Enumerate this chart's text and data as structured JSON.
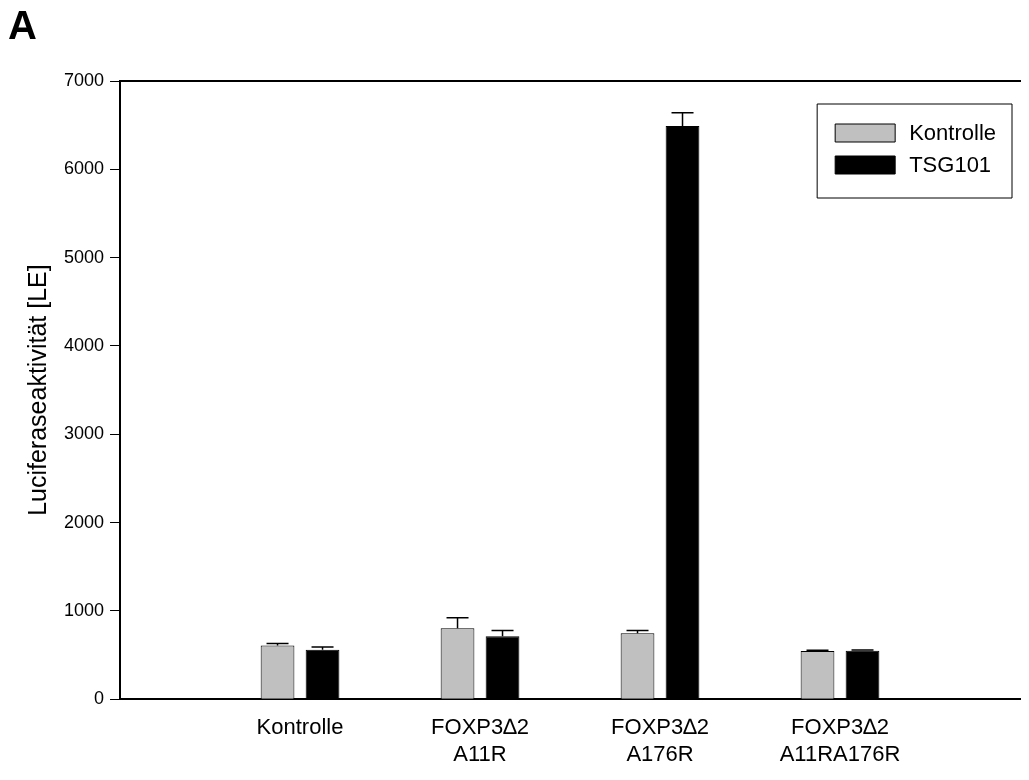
{
  "chart_data": {
    "type": "bar",
    "ylabel": "Luciferaseaktivität [LE]",
    "annotations": [
      "A"
    ],
    "categories": [
      null,
      "Kontrolle",
      "FOXP3∆2\nA11R",
      "FOXP3∆2\nA176R",
      "FOXP3∆2\nA11RA176R",
      null
    ],
    "series": [
      {
        "name": "Kontrolle",
        "color": "#c0c0c0",
        "values": [
          null,
          607,
          803,
          748,
          545,
          null
        ],
        "errors": [
          null,
          25,
          120,
          30,
          10,
          null
        ]
      },
      {
        "name": "TSG101",
        "color": "#000000",
        "values": [
          null,
          560,
          713,
          6490,
          550,
          null
        ],
        "errors": [
          null,
          30,
          65,
          150,
          8,
          null
        ]
      }
    ],
    "ylim": [
      0,
      7000
    ],
    "yticks": [
      0,
      1000,
      2000,
      3000,
      4000,
      5000,
      6000,
      7000
    ],
    "grid": false,
    "legend": "top right"
  }
}
